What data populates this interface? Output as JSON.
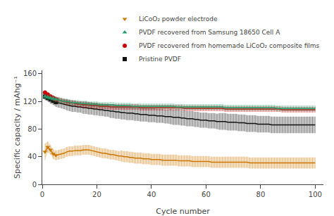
{
  "chart_data": {
    "type": "line",
    "xlabel": "Cycle number",
    "ylabel": "Specific capacity / mAhg⁻¹",
    "xlim": [
      0,
      103
    ],
    "ylim": [
      0,
      165
    ],
    "xticks": [
      0,
      20,
      40,
      60,
      80,
      100
    ],
    "yticks": [
      0,
      40,
      80,
      120,
      160
    ],
    "grid": false,
    "legend": "upper right",
    "x": [
      1,
      2,
      3,
      4,
      5,
      6,
      7,
      8,
      9,
      10,
      11,
      12,
      13,
      14,
      15,
      16,
      17,
      18,
      19,
      20,
      21,
      22,
      23,
      24,
      25,
      26,
      27,
      28,
      29,
      30,
      31,
      32,
      33,
      34,
      35,
      36,
      37,
      38,
      39,
      40,
      41,
      42,
      43,
      44,
      45,
      46,
      47,
      48,
      49,
      50,
      51,
      52,
      53,
      54,
      55,
      56,
      57,
      58,
      59,
      60,
      61,
      62,
      63,
      64,
      65,
      66,
      67,
      68,
      69,
      70,
      71,
      72,
      73,
      74,
      75,
      76,
      77,
      78,
      79,
      80,
      81,
      82,
      83,
      84,
      85,
      86,
      87,
      88,
      89,
      90,
      91,
      92,
      93,
      94,
      95,
      96,
      97,
      98,
      99,
      100
    ],
    "series": [
      {
        "name": "Pristine PVDF",
        "color": "#111111",
        "marker": "square",
        "values": [
          127,
          125,
          123,
          121,
          119,
          118,
          117,
          116,
          115,
          114,
          113,
          113,
          112,
          112,
          111,
          111,
          110,
          110,
          109,
          109,
          108,
          108,
          107,
          107,
          106,
          106,
          105,
          105,
          104,
          104,
          103,
          103,
          103,
          102,
          102,
          101,
          101,
          101,
          100,
          100,
          100,
          99,
          99,
          99,
          98,
          98,
          98,
          97,
          97,
          97,
          96,
          96,
          95,
          95,
          95,
          94,
          94,
          93,
          93,
          93,
          92,
          92,
          92,
          91,
          91,
          91,
          91,
          90,
          90,
          90,
          90,
          89,
          89,
          89,
          88,
          88,
          88,
          88,
          87,
          87,
          87,
          87,
          87,
          86,
          86,
          86,
          86,
          86,
          86,
          86,
          86,
          86,
          86,
          86,
          86,
          86,
          86,
          86,
          86,
          86
        ],
        "yerr": [
          5,
          5,
          6,
          6,
          7,
          7,
          7,
          7,
          8,
          8,
          8,
          8,
          8,
          8,
          9,
          9,
          9,
          9,
          9,
          9,
          9,
          9,
          9,
          9,
          10,
          10,
          10,
          10,
          10,
          10,
          10,
          10,
          10,
          10,
          10,
          10,
          10,
          10,
          10,
          10,
          10,
          10,
          10,
          10,
          10,
          10,
          11,
          11,
          11,
          11,
          11,
          11,
          11,
          11,
          11,
          11,
          11,
          11,
          11,
          11,
          11,
          11,
          11,
          11,
          12,
          12,
          12,
          12,
          12,
          12,
          12,
          12,
          12,
          12,
          12,
          12,
          12,
          12,
          12,
          12,
          12,
          12,
          12,
          12,
          12,
          12,
          12,
          12,
          12,
          12,
          12,
          12,
          12,
          12,
          12,
          12,
          12,
          12,
          12,
          12
        ]
      },
      {
        "name": "PVDF recovered from homemade LiCoO₂ composite films",
        "color": "#cc0000",
        "marker": "circle",
        "values": [
          133,
          130,
          127,
          125,
          123,
          122,
          121,
          120,
          119,
          118,
          118,
          117,
          116,
          116,
          115,
          115,
          115,
          114,
          114,
          114,
          113,
          113,
          113,
          113,
          112,
          112,
          112,
          112,
          112,
          112,
          112,
          112,
          112,
          112,
          112,
          111,
          111,
          111,
          111,
          111,
          111,
          111,
          111,
          111,
          111,
          111,
          111,
          111,
          111,
          111,
          111,
          110,
          110,
          110,
          110,
          110,
          110,
          110,
          110,
          110,
          110,
          110,
          110,
          110,
          110,
          110,
          109,
          109,
          109,
          109,
          109,
          109,
          109,
          109,
          109,
          109,
          109,
          109,
          109,
          109,
          109,
          109,
          109,
          109,
          109,
          109,
          109,
          108,
          108,
          108,
          108,
          108,
          108,
          108,
          108,
          108,
          108,
          108,
          108,
          108
        ],
        "yerr": [
          3,
          3,
          4,
          4,
          4,
          4,
          4,
          4,
          4,
          4,
          4,
          4,
          4,
          4,
          4,
          4,
          4,
          4,
          4,
          4,
          4,
          4,
          4,
          4,
          4,
          4,
          4,
          4,
          4,
          4,
          4,
          4,
          4,
          4,
          4,
          4,
          4,
          4,
          4,
          4,
          4,
          4,
          4,
          4,
          4,
          4,
          4,
          4,
          4,
          4,
          4,
          4,
          4,
          4,
          4,
          4,
          4,
          4,
          4,
          4,
          4,
          4,
          4,
          4,
          4,
          4,
          4,
          4,
          4,
          4,
          4,
          4,
          4,
          4,
          4,
          4,
          4,
          4,
          4,
          4,
          4,
          4,
          4,
          4,
          4,
          4,
          4,
          4,
          4,
          4,
          4,
          4,
          4,
          4,
          4,
          4,
          4,
          4,
          4,
          4
        ]
      },
      {
        "name": "PVDF recovered from Samsung 18650 Cell A",
        "color": "#2a9d6e",
        "marker": "triangle-up",
        "values": [
          127,
          126,
          125,
          124,
          123,
          122,
          121,
          120,
          120,
          119,
          118,
          118,
          118,
          117,
          117,
          117,
          116,
          116,
          116,
          116,
          115,
          115,
          115,
          115,
          115,
          115,
          114,
          114,
          114,
          114,
          114,
          114,
          113,
          113,
          113,
          113,
          113,
          113,
          113,
          113,
          113,
          113,
          113,
          113,
          113,
          113,
          113,
          113,
          112,
          112,
          112,
          112,
          112,
          112,
          112,
          112,
          112,
          112,
          112,
          112,
          112,
          112,
          112,
          112,
          112,
          112,
          111,
          111,
          111,
          111,
          111,
          111,
          111,
          111,
          111,
          111,
          111,
          111,
          111,
          111,
          111,
          111,
          111,
          111,
          111,
          110,
          110,
          110,
          110,
          110,
          110,
          110,
          110,
          110,
          110,
          110,
          110,
          110,
          110,
          110
        ],
        "yerr": [
          4,
          4,
          4,
          4,
          4,
          4,
          4,
          4,
          4,
          4,
          4,
          4,
          4,
          4,
          4,
          4,
          4,
          4,
          4,
          4,
          4,
          4,
          4,
          4,
          4,
          4,
          4,
          4,
          4,
          4,
          4,
          4,
          4,
          4,
          4,
          4,
          4,
          4,
          4,
          4,
          4,
          4,
          4,
          4,
          4,
          4,
          4,
          4,
          4,
          4,
          4,
          4,
          4,
          4,
          4,
          4,
          4,
          4,
          4,
          4,
          4,
          4,
          4,
          4,
          4,
          4,
          4,
          4,
          4,
          4,
          4,
          4,
          4,
          4,
          4,
          4,
          4,
          4,
          4,
          4,
          4,
          4,
          4,
          4,
          4,
          4,
          4,
          4,
          4,
          4,
          4,
          4,
          4,
          4,
          4,
          4,
          4,
          4,
          4,
          4
        ]
      },
      {
        "name": "LiCoO₂ powder electrode",
        "color": "#cc7700",
        "marker": "triangle-down",
        "values": [
          47,
          54,
          50,
          44,
          42,
          43,
          44,
          45,
          47,
          48,
          48,
          49,
          49,
          49,
          50,
          50,
          50,
          49,
          48,
          47,
          46,
          45,
          45,
          44,
          43,
          43,
          42,
          41,
          41,
          40,
          40,
          39,
          39,
          38,
          38,
          38,
          37,
          37,
          37,
          36,
          36,
          36,
          36,
          35,
          35,
          35,
          35,
          35,
          35,
          34,
          34,
          34,
          34,
          34,
          33,
          33,
          33,
          33,
          33,
          33,
          33,
          32,
          32,
          32,
          32,
          32,
          32,
          32,
          32,
          32,
          32,
          32,
          32,
          32,
          32,
          31,
          31,
          31,
          31,
          31,
          31,
          31,
          31,
          31,
          31,
          31,
          31,
          31,
          31,
          31,
          31,
          31,
          31,
          31,
          31,
          31,
          31,
          31,
          31,
          31
        ],
        "yerr": [
          12,
          8,
          7,
          7,
          7,
          7,
          7,
          7,
          7,
          7,
          7,
          7,
          7,
          7,
          7,
          7,
          7,
          7,
          7,
          7,
          7,
          7,
          7,
          7,
          7,
          7,
          7,
          7,
          8,
          8,
          8,
          8,
          8,
          8,
          8,
          8,
          8,
          8,
          8,
          8,
          8,
          8,
          8,
          8,
          8,
          8,
          8,
          8,
          8,
          8,
          8,
          8,
          8,
          8,
          8,
          8,
          8,
          8,
          8,
          8,
          8,
          8,
          8,
          8,
          8,
          8,
          8,
          8,
          8,
          8,
          8,
          8,
          8,
          8,
          8,
          8,
          8,
          8,
          8,
          8,
          8,
          8,
          8,
          8,
          8,
          8,
          8,
          8,
          8,
          8,
          8,
          8,
          8,
          8,
          8,
          8,
          8,
          8,
          8,
          8
        ]
      }
    ]
  }
}
